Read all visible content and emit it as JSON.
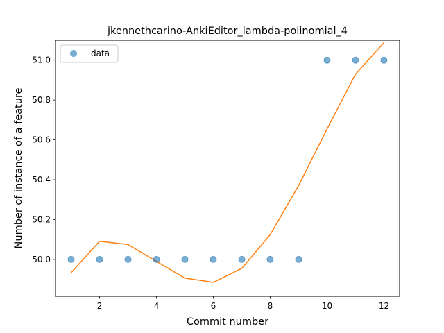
{
  "chart_data": {
    "type": "scatter",
    "title": "jkennethcarino-AnkiEditor_lambda-polinomial_4",
    "xlabel": "Commit number",
    "ylabel": "Number of instance of a feature",
    "xlim": [
      0.45,
      12.55
    ],
    "ylim": [
      49.815,
      51.1
    ],
    "x_ticks": [
      2,
      4,
      6,
      8,
      10,
      12
    ],
    "y_ticks": [
      50.0,
      50.2,
      50.4,
      50.6,
      50.8,
      51.0
    ],
    "x_tick_labels": [
      "2",
      "4",
      "6",
      "8",
      "10",
      "12"
    ],
    "y_tick_labels": [
      "50.0",
      "50.2",
      "50.4",
      "50.6",
      "50.8",
      "51.0"
    ],
    "grid": false,
    "legend": {
      "location": "upper-left",
      "entries": [
        {
          "name": "data",
          "marker": "circle"
        }
      ]
    },
    "series": [
      {
        "name": "data",
        "kind": "scatter",
        "color": "#1f77b4",
        "x": [
          1,
          2,
          3,
          4,
          5,
          6,
          7,
          8,
          9,
          10,
          11,
          12
        ],
        "y": [
          50,
          50,
          50,
          50,
          50,
          50,
          50,
          50,
          50,
          51,
          51,
          51
        ]
      },
      {
        "kind": "line",
        "color": "#ff7f0e",
        "x": [
          1,
          2,
          3,
          4,
          5,
          6,
          7,
          8,
          9,
          10,
          11,
          12
        ],
        "y": [
          49.933,
          50.091,
          50.075,
          49.99,
          49.906,
          49.885,
          49.955,
          50.124,
          50.371,
          50.655,
          50.93,
          51.088
        ]
      }
    ]
  }
}
